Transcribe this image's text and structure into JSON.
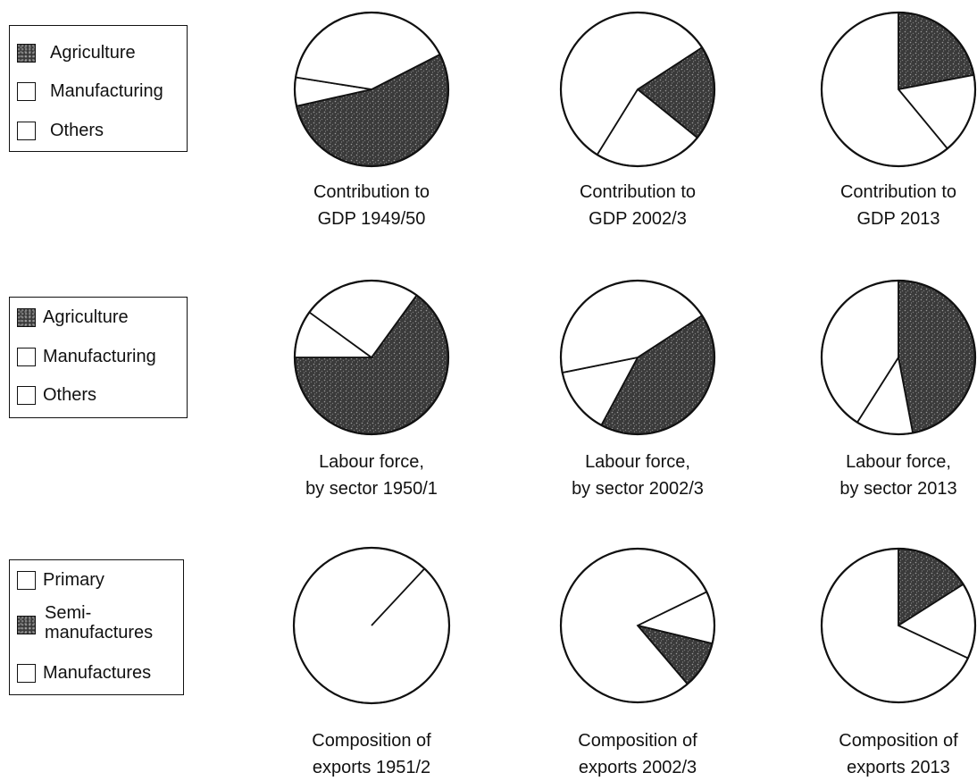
{
  "legends": [
    {
      "items": [
        {
          "label": "Agriculture",
          "fill": "dark"
        },
        {
          "label": "Manufacturing",
          "fill": "white"
        },
        {
          "label": "Others",
          "fill": "white"
        }
      ]
    },
    {
      "items": [
        {
          "label": "Agriculture",
          "fill": "dark"
        },
        {
          "label": "Manufacturing",
          "fill": "white"
        },
        {
          "label": "Others",
          "fill": "white"
        }
      ]
    },
    {
      "items": [
        {
          "label": "Primary",
          "fill": "white"
        },
        {
          "label": "Semi-\nmanufactures",
          "fill": "dark"
        },
        {
          "label": "Manufactures",
          "fill": "white"
        }
      ]
    }
  ],
  "colors": {
    "dark": "#3a3a3a",
    "light": "#ffffff",
    "stroke": "#111111"
  },
  "chart_data": [
    {
      "type": "pie",
      "caption": [
        "Contribution to",
        "GDP 1949/50"
      ],
      "slices": [
        {
          "name": "Agriculture",
          "value": 54,
          "fill": "dark"
        },
        {
          "name": "Manufacturing",
          "value": 6,
          "fill": "white"
        },
        {
          "name": "Others",
          "value": 40,
          "fill": "white"
        }
      ],
      "start_deg": 63
    },
    {
      "type": "pie",
      "caption": [
        "Contribution to",
        "GDP 2002/3"
      ],
      "slices": [
        {
          "name": "Agriculture",
          "value": 20,
          "fill": "dark"
        },
        {
          "name": "Manufacturing",
          "value": 23,
          "fill": "white"
        },
        {
          "name": "Others",
          "value": 57,
          "fill": "white"
        }
      ],
      "start_deg": 57
    },
    {
      "type": "pie",
      "caption": [
        "Contribution to",
        "GDP 2013"
      ],
      "slices": [
        {
          "name": "Agriculture",
          "value": 22,
          "fill": "dark"
        },
        {
          "name": "Manufacturing",
          "value": 17,
          "fill": "white"
        },
        {
          "name": "Others",
          "value": 61,
          "fill": "white"
        }
      ],
      "start_deg": 0
    },
    {
      "type": "pie",
      "caption": [
        "Labour force,",
        "by sector 1950/1"
      ],
      "slices": [
        {
          "name": "Agriculture",
          "value": 65,
          "fill": "dark"
        },
        {
          "name": "Manufacturing",
          "value": 10,
          "fill": "white"
        },
        {
          "name": "Others",
          "value": 25,
          "fill": "white"
        }
      ],
      "start_deg": 36
    },
    {
      "type": "pie",
      "caption": [
        "Labour force,",
        "by sector 2002/3"
      ],
      "slices": [
        {
          "name": "Agriculture",
          "value": 42,
          "fill": "dark"
        },
        {
          "name": "Manufacturing",
          "value": 14,
          "fill": "white"
        },
        {
          "name": "Others",
          "value": 44,
          "fill": "white"
        }
      ],
      "start_deg": 57
    },
    {
      "type": "pie",
      "caption": [
        "Labour force,",
        "by sector 2013"
      ],
      "slices": [
        {
          "name": "Agriculture",
          "value": 47,
          "fill": "dark"
        },
        {
          "name": "Manufacturing",
          "value": 12,
          "fill": "white"
        },
        {
          "name": "Others",
          "value": 41,
          "fill": "white"
        }
      ],
      "start_deg": 0
    },
    {
      "type": "pie",
      "caption": [
        "Composition of",
        "exports 1951/2"
      ],
      "slices": [
        {
          "name": "Primary",
          "value": 100,
          "fill": "white"
        },
        {
          "name": "Semi-manufactures",
          "value": 0,
          "fill": "dark"
        },
        {
          "name": "Manufactures",
          "value": 0,
          "fill": "white"
        }
      ],
      "start_deg": 43,
      "single_spoke": true
    },
    {
      "type": "pie",
      "caption": [
        "Composition of",
        "exports 2002/3"
      ],
      "slices": [
        {
          "name": "Manufactures",
          "value": 11,
          "fill": "white"
        },
        {
          "name": "Semi-manufactures",
          "value": 10,
          "fill": "dark"
        },
        {
          "name": "Primary",
          "value": 79,
          "fill": "white"
        }
      ],
      "start_deg": 64
    },
    {
      "type": "pie",
      "caption": [
        "Composition of",
        "exports 2013"
      ],
      "slices": [
        {
          "name": "Semi-manufactures",
          "value": 16,
          "fill": "dark"
        },
        {
          "name": "Manufactures",
          "value": 16,
          "fill": "white"
        },
        {
          "name": "Primary",
          "value": 68,
          "fill": "white"
        }
      ],
      "start_deg": 0
    }
  ]
}
